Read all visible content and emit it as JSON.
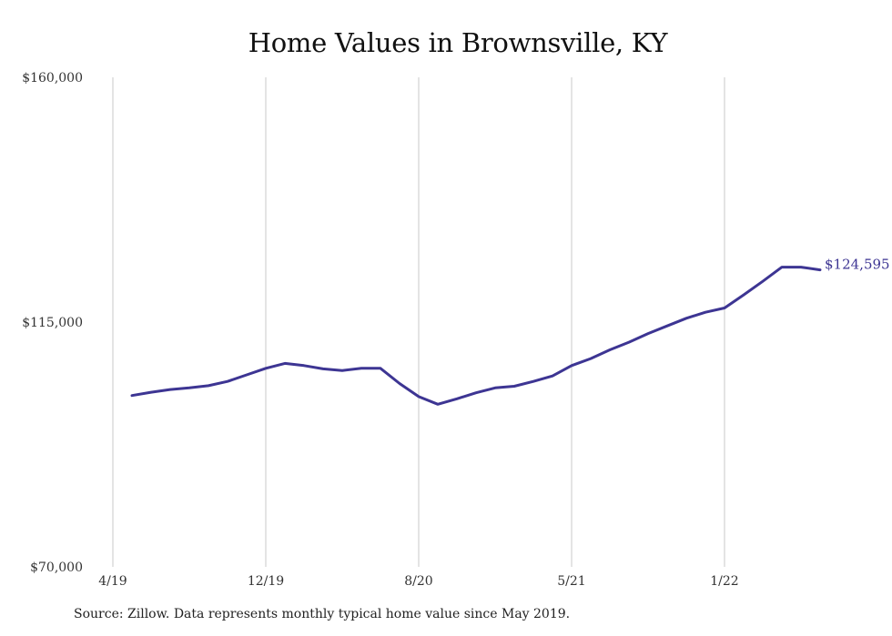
{
  "chart_data": {
    "type": "line",
    "title": "Home Values in Brownsville, KY",
    "xlabel": "",
    "ylabel": "",
    "ylim": [
      70000,
      160000
    ],
    "yticks": [
      "$70,000",
      "$115,000",
      "$160,000"
    ],
    "ytick_values": [
      70000,
      115000,
      160000
    ],
    "xticks": [
      "4/19",
      "12/19",
      "8/20",
      "5/21",
      "1/22"
    ],
    "grid": "vertical",
    "x": [
      "5/19",
      "6/19",
      "7/19",
      "8/19",
      "9/19",
      "10/19",
      "11/19",
      "12/19",
      "1/20",
      "2/20",
      "3/20",
      "4/20",
      "5/20",
      "6/20",
      "7/20",
      "8/20",
      "9/20",
      "10/20",
      "11/20",
      "12/20",
      "1/21",
      "2/21",
      "3/21",
      "4/21",
      "5/21",
      "6/21",
      "7/21",
      "8/21",
      "9/21",
      "10/21",
      "11/21",
      "12/21",
      "1/22",
      "2/22",
      "3/22",
      "4/22",
      "5/22"
    ],
    "series": [
      {
        "color": "#3d3593",
        "values": [
          101500,
          102100,
          102600,
          102900,
          103300,
          104100,
          105300,
          106500,
          107400,
          107000,
          106400,
          106100,
          106500,
          106500,
          103700,
          101300,
          99900,
          100900,
          102000,
          102900,
          103200,
          104100,
          105100,
          107000,
          108300,
          109900,
          111300,
          112900,
          114300,
          115700,
          116800,
          117600,
          120000,
          122500,
          125100,
          125100,
          124595
        ],
        "end_label": "$124,595"
      }
    ]
  },
  "source_note": "Source: Zillow. Data represents monthly typical home value since May 2019."
}
